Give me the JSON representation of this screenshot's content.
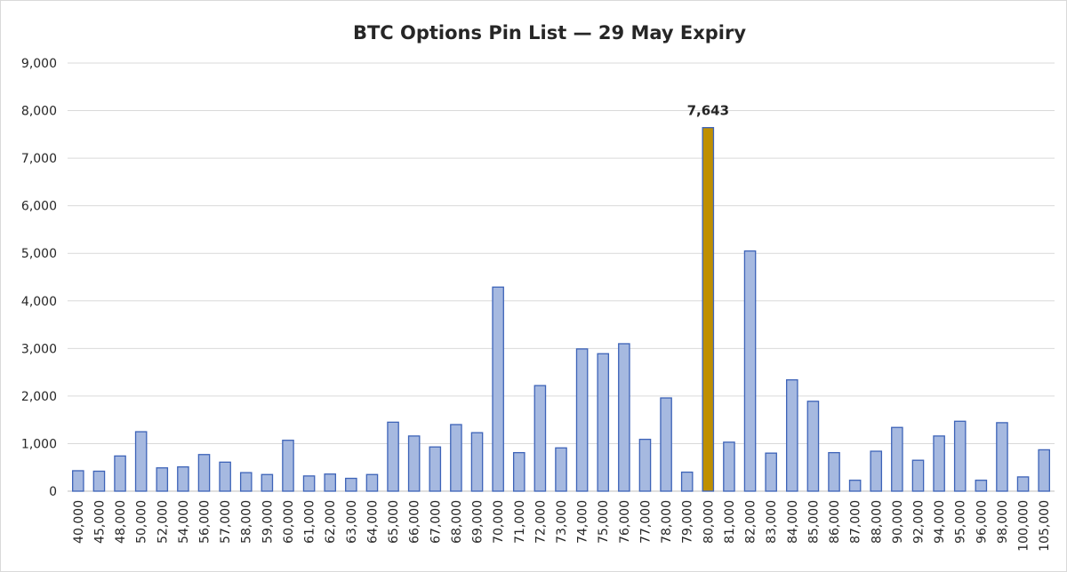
{
  "chart_data": {
    "type": "bar",
    "title": "BTC Options Pin List — 29 May Expiry",
    "xlabel": "",
    "ylabel": "",
    "ylim": [
      0,
      9000
    ],
    "yticks": [
      0,
      1000,
      2000,
      3000,
      4000,
      5000,
      6000,
      7000,
      8000,
      9000
    ],
    "ytick_labels": [
      "0",
      "1,000",
      "2,000",
      "3,000",
      "4,000",
      "5,000",
      "6,000",
      "7,000",
      "8,000",
      "9,000"
    ],
    "grid": true,
    "legend": "none",
    "categories": [
      "40,000",
      "45,000",
      "48,000",
      "50,000",
      "52,000",
      "54,000",
      "56,000",
      "57,000",
      "58,000",
      "59,000",
      "60,000",
      "61,000",
      "62,000",
      "63,000",
      "64,000",
      "65,000",
      "66,000",
      "67,000",
      "68,000",
      "69,000",
      "70,000",
      "71,000",
      "72,000",
      "73,000",
      "74,000",
      "75,000",
      "76,000",
      "77,000",
      "78,000",
      "79,000",
      "80,000",
      "81,000",
      "82,000",
      "83,000",
      "84,000",
      "85,000",
      "86,000",
      "87,000",
      "88,000",
      "90,000",
      "92,000",
      "94,000",
      "95,000",
      "96,000",
      "98,000",
      "100,000",
      "105,000"
    ],
    "values": [
      430,
      420,
      740,
      1250,
      490,
      510,
      770,
      610,
      390,
      350,
      1070,
      320,
      360,
      270,
      350,
      1450,
      1160,
      930,
      1400,
      1230,
      4290,
      810,
      2220,
      910,
      2990,
      2890,
      3100,
      1090,
      1960,
      400,
      7643,
      1030,
      5050,
      800,
      2340,
      1890,
      810,
      230,
      840,
      1340,
      650,
      1160,
      1470,
      230,
      1440,
      300,
      870
    ],
    "highlight": {
      "category": "80,000",
      "label": "7,643"
    },
    "colors": {
      "bar_fill": "#a6b9e0",
      "bar_stroke": "#3d63b8",
      "highlight_fill": "#bf8f00",
      "highlight_stroke": "#3d63b8",
      "grid": "#d9d9d9",
      "text": "#262626"
    }
  }
}
